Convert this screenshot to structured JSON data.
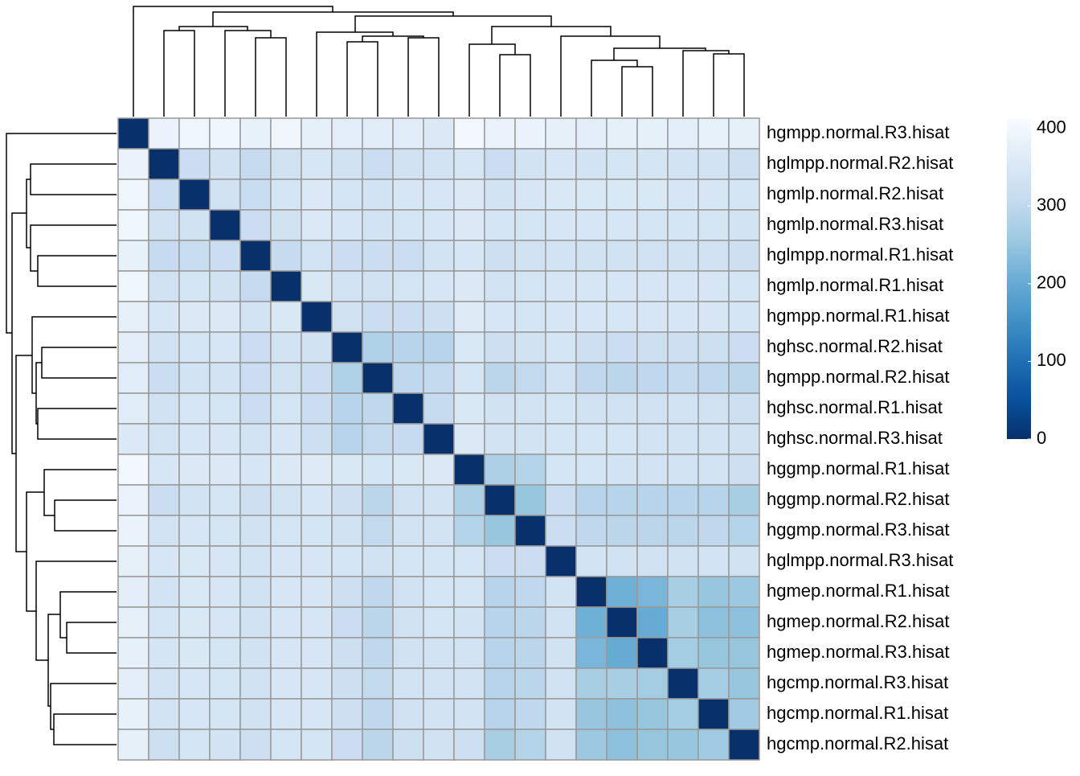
{
  "chart_data": {
    "type": "heatmap",
    "categories": [
      "hgmpp.normal.R3.hisat",
      "hglmpp.normal.R2.hisat",
      "hgmlp.normal.R2.hisat",
      "hgmlp.normal.R3.hisat",
      "hglmpp.normal.R1.hisat",
      "hgmlp.normal.R1.hisat",
      "hgmpp.normal.R1.hisat",
      "hghsc.normal.R2.hisat",
      "hgmpp.normal.R2.hisat",
      "hghsc.normal.R1.hisat",
      "hghsc.normal.R3.hisat",
      "hggmp.normal.R1.hisat",
      "hggmp.normal.R2.hisat",
      "hggmp.normal.R3.hisat",
      "hglmpp.normal.R3.hisat",
      "hgmep.normal.R1.hisat",
      "hgmep.normal.R2.hisat",
      "hgmep.normal.R3.hisat",
      "hgcmp.normal.R3.hisat",
      "hgcmp.normal.R1.hisat",
      "hgcmp.normal.R2.hisat"
    ],
    "values": [
      [
        0,
        385,
        395,
        395,
        380,
        395,
        375,
        370,
        365,
        365,
        355,
        400,
        385,
        385,
        375,
        370,
        375,
        375,
        370,
        380,
        375
      ],
      [
        385,
        0,
        320,
        330,
        310,
        330,
        345,
        330,
        320,
        330,
        335,
        345,
        320,
        335,
        345,
        335,
        340,
        340,
        335,
        335,
        325
      ],
      [
        395,
        320,
        0,
        330,
        315,
        340,
        355,
        340,
        335,
        345,
        345,
        355,
        335,
        345,
        350,
        350,
        350,
        350,
        345,
        345,
        340
      ],
      [
        395,
        330,
        330,
        0,
        320,
        330,
        355,
        345,
        335,
        340,
        345,
        355,
        340,
        340,
        345,
        345,
        345,
        340,
        340,
        340,
        335
      ],
      [
        380,
        310,
        315,
        320,
        0,
        310,
        335,
        320,
        320,
        320,
        335,
        345,
        325,
        330,
        335,
        330,
        330,
        330,
        330,
        330,
        325
      ],
      [
        395,
        330,
        340,
        330,
        310,
        0,
        350,
        335,
        330,
        340,
        345,
        355,
        335,
        340,
        345,
        345,
        345,
        345,
        345,
        345,
        340
      ],
      [
        375,
        345,
        355,
        355,
        335,
        350,
        0,
        330,
        320,
        320,
        325,
        360,
        345,
        340,
        345,
        345,
        345,
        345,
        345,
        345,
        340
      ],
      [
        370,
        330,
        340,
        345,
        320,
        335,
        330,
        0,
        280,
        290,
        290,
        350,
        325,
        330,
        340,
        325,
        320,
        325,
        325,
        325,
        320
      ],
      [
        365,
        320,
        335,
        335,
        320,
        330,
        320,
        280,
        0,
        300,
        305,
        340,
        295,
        305,
        330,
        300,
        295,
        300,
        305,
        300,
        295
      ],
      [
        365,
        330,
        345,
        340,
        320,
        340,
        320,
        290,
        300,
        0,
        310,
        350,
        330,
        335,
        340,
        330,
        330,
        330,
        335,
        330,
        325
      ],
      [
        355,
        335,
        345,
        345,
        335,
        345,
        325,
        290,
        305,
        310,
        0,
        355,
        335,
        335,
        340,
        340,
        340,
        335,
        335,
        335,
        330
      ],
      [
        400,
        345,
        355,
        355,
        345,
        355,
        360,
        350,
        340,
        350,
        355,
        0,
        275,
        285,
        340,
        340,
        335,
        335,
        335,
        335,
        325
      ],
      [
        385,
        320,
        335,
        340,
        325,
        335,
        345,
        325,
        295,
        330,
        335,
        275,
        0,
        250,
        320,
        290,
        290,
        290,
        290,
        290,
        270
      ],
      [
        385,
        335,
        345,
        340,
        330,
        340,
        340,
        330,
        305,
        335,
        335,
        285,
        250,
        0,
        320,
        300,
        295,
        295,
        295,
        300,
        285
      ],
      [
        375,
        345,
        350,
        345,
        335,
        345,
        345,
        340,
        330,
        340,
        340,
        340,
        320,
        320,
        0,
        335,
        330,
        330,
        330,
        335,
        330
      ],
      [
        370,
        335,
        350,
        345,
        330,
        345,
        345,
        325,
        300,
        330,
        340,
        340,
        290,
        300,
        335,
        0,
        210,
        220,
        270,
        250,
        255
      ],
      [
        375,
        340,
        350,
        345,
        330,
        345,
        345,
        320,
        295,
        330,
        340,
        335,
        290,
        295,
        330,
        210,
        0,
        200,
        270,
        240,
        240
      ],
      [
        375,
        340,
        350,
        340,
        330,
        345,
        345,
        325,
        300,
        330,
        335,
        335,
        290,
        295,
        330,
        220,
        200,
        0,
        265,
        250,
        250
      ],
      [
        370,
        335,
        345,
        340,
        330,
        345,
        345,
        325,
        305,
        335,
        335,
        335,
        290,
        295,
        330,
        270,
        270,
        265,
        0,
        265,
        250
      ],
      [
        380,
        335,
        345,
        340,
        330,
        345,
        345,
        325,
        300,
        330,
        335,
        335,
        290,
        300,
        335,
        250,
        240,
        250,
        265,
        0,
        260
      ],
      [
        375,
        325,
        340,
        335,
        325,
        340,
        340,
        320,
        295,
        325,
        330,
        325,
        270,
        285,
        330,
        255,
        240,
        250,
        250,
        260,
        0
      ]
    ],
    "zlim": [
      0,
      412
    ],
    "zticks": [
      0,
      100,
      200,
      300,
      400
    ],
    "colormap": [
      "#08306b",
      "#08519c",
      "#2171b5",
      "#4292c6",
      "#6baed6",
      "#9ecae1",
      "#c6dbef",
      "#deebf7",
      "#f7fbff"
    ],
    "cell_border": "#999999"
  }
}
